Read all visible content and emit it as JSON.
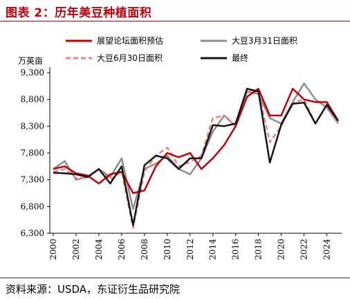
{
  "header": {
    "title": "图表 2：历年美豆种植面积"
  },
  "footer": {
    "source": "资料来源：USDA，东证衍生品研究院"
  },
  "chart_data": {
    "type": "line",
    "unit_label": "万英亩",
    "xlim": [
      2000,
      2025
    ],
    "ylim": [
      6300,
      9300
    ],
    "y_ticks": [
      6300,
      6800,
      7300,
      7800,
      8300,
      8800,
      9300
    ],
    "y_tick_labels": [
      "6,300",
      "6,800",
      "7,300",
      "7,800",
      "8,300",
      "8,800",
      "9,300"
    ],
    "x_ticks": [
      2000,
      2002,
      2004,
      2006,
      2008,
      2010,
      2012,
      2014,
      2016,
      2018,
      2020,
      2022,
      2024
    ],
    "legend_position": "top",
    "series": [
      {
        "name": "展望论坛面积预估",
        "color": "#c0000a",
        "style": "solid",
        "width": 2.5,
        "x": [
          2000,
          2001,
          2002,
          2003,
          2004,
          2005,
          2006,
          2007,
          2008,
          2009,
          2010,
          2011,
          2012,
          2013,
          2014,
          2015,
          2016,
          2017,
          2018,
          2019,
          2020,
          2021,
          2022,
          2023,
          2024,
          2025
        ],
        "y": [
          7500,
          7550,
          7420,
          7380,
          7230,
          7400,
          7450,
          7050,
          7100,
          7550,
          7800,
          7720,
          7800,
          7500,
          7700,
          7950,
          8300,
          8850,
          9000,
          8500,
          8500,
          9000,
          8800,
          8750,
          8750,
          8400
        ]
      },
      {
        "name": "大豆3月31日面积",
        "color": "#8c8c8c",
        "style": "solid",
        "width": 2.5,
        "x": [
          2000,
          2001,
          2002,
          2003,
          2004,
          2005,
          2006,
          2007,
          2008,
          2009,
          2010,
          2011,
          2012,
          2013,
          2014,
          2015,
          2016,
          2017,
          2018,
          2019,
          2020,
          2021,
          2022,
          2023,
          2024,
          2025
        ],
        "y": [
          7500,
          7650,
          7300,
          7350,
          7500,
          7350,
          7700,
          6750,
          7500,
          7600,
          7750,
          7500,
          7400,
          7700,
          8200,
          8500,
          8300,
          8950,
          8900,
          8450,
          8350,
          8750,
          9100,
          8800,
          8650,
          8350
        ]
      },
      {
        "name": "大豆6月30日面积",
        "color": "#f08080",
        "style": "dashed",
        "width": 2.5,
        "x": [
          2000,
          2001,
          2002,
          2003,
          2004,
          2005,
          2006,
          2007,
          2008,
          2009,
          2010,
          2011,
          2012,
          2013,
          2014,
          2015,
          2016,
          2017,
          2018,
          2019,
          2020,
          2021,
          2022,
          2023,
          2024,
          2025
        ],
        "y": [
          7450,
          7500,
          7330,
          7330,
          7500,
          7300,
          7450,
          6400,
          7450,
          7750,
          7900,
          7550,
          7630,
          7750,
          8450,
          8500,
          8300,
          8950,
          8950,
          8000,
          8300,
          8750,
          8800,
          8350,
          8700,
          8350
        ]
      },
      {
        "name": "最终",
        "color": "#141414",
        "style": "solid",
        "width": 2.5,
        "x": [
          2000,
          2001,
          2002,
          2003,
          2004,
          2005,
          2006,
          2007,
          2008,
          2009,
          2010,
          2011,
          2012,
          2013,
          2014,
          2015,
          2016,
          2017,
          2018,
          2019,
          2020,
          2021,
          2022,
          2023,
          2024,
          2025
        ],
        "y": [
          7430,
          7420,
          7400,
          7350,
          7500,
          7230,
          7550,
          6450,
          7570,
          7750,
          7700,
          7500,
          7700,
          7700,
          8320,
          8300,
          8350,
          9000,
          8950,
          7620,
          8330,
          8720,
          8740,
          8350,
          8700,
          8400
        ]
      }
    ]
  }
}
